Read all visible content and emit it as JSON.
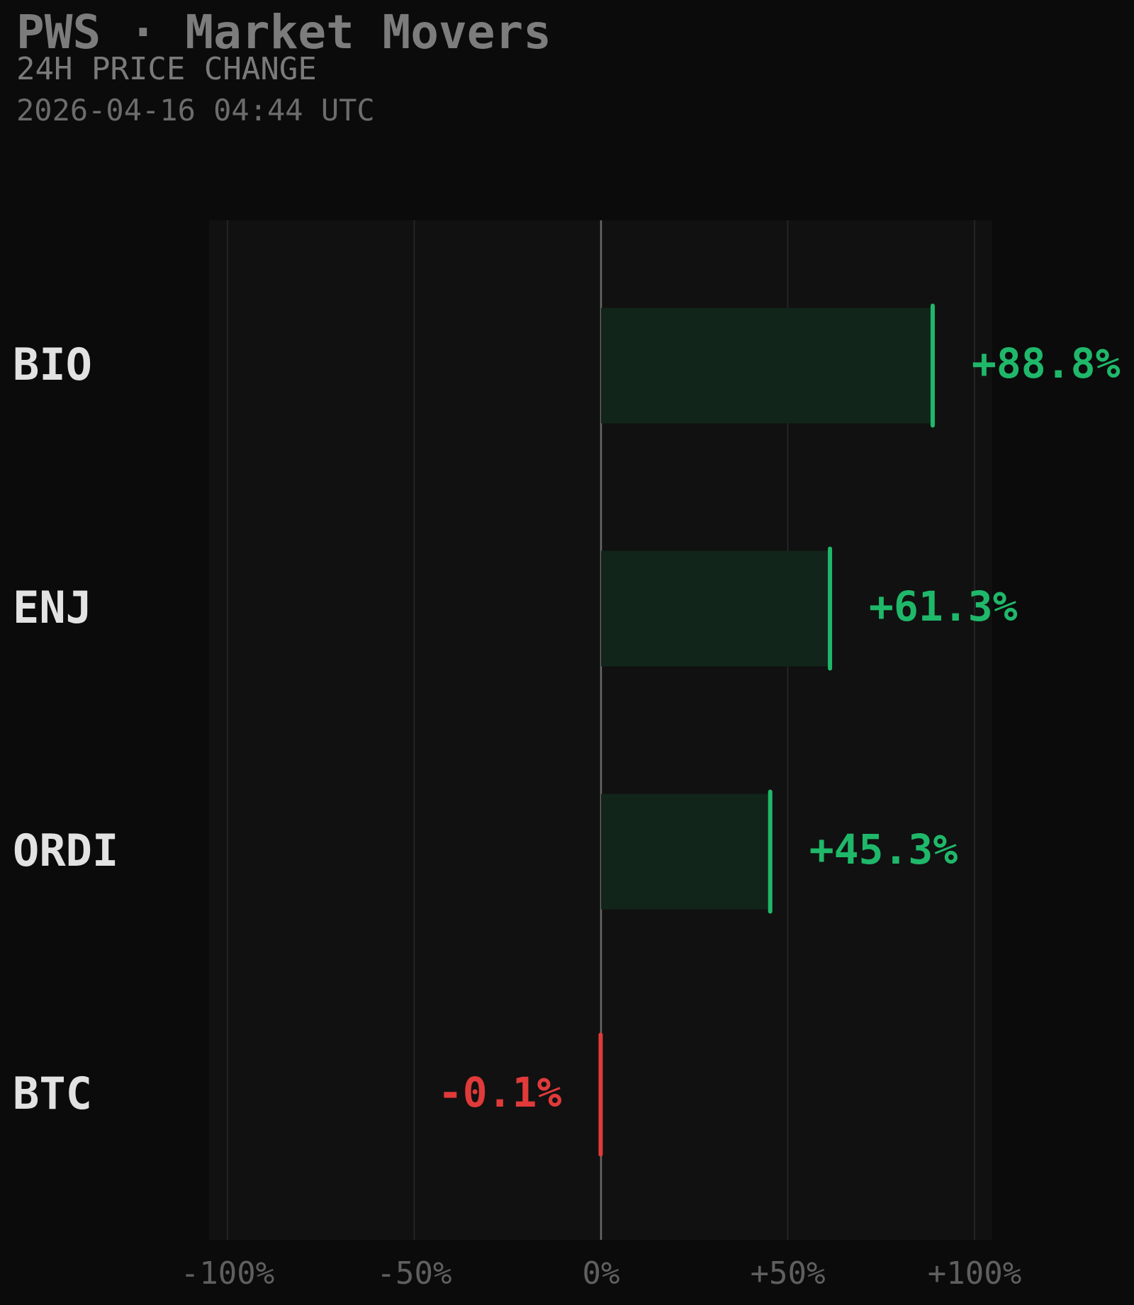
{
  "header": {
    "title": "PWS · Market Movers",
    "subtitle": "24H PRICE CHANGE",
    "timestamp": "2026-04-16 04:44 UTC"
  },
  "colors": {
    "background": "#0b0b0b",
    "plot_background": "#111111",
    "gridline": "#2a2a2a",
    "zero_line": "#6a6a6a",
    "positive": "#1fb86a",
    "positive_fill": "#12251b",
    "negative": "#e03a3a",
    "symbol_text": "#e2e2e2",
    "tick_text": "#5f5f5f"
  },
  "chart_data": {
    "type": "bar",
    "orientation": "horizontal",
    "title": "PWS · Market Movers",
    "subtitle": "24H PRICE CHANGE",
    "categories": [
      "BIO",
      "ENJ",
      "ORDI",
      "BTC"
    ],
    "values": [
      88.8,
      61.3,
      45.3,
      -0.1
    ],
    "value_labels": [
      "+88.8%",
      "+61.3%",
      "+45.3%",
      "-0.1%"
    ],
    "xlim": [
      -100,
      100
    ],
    "x_ticks": [
      -100,
      -50,
      0,
      50,
      100
    ],
    "x_tick_labels": [
      "-100%",
      "-50%",
      "0%",
      "+50%",
      "+100%"
    ],
    "xlabel": "",
    "ylabel": "",
    "grid": true
  }
}
